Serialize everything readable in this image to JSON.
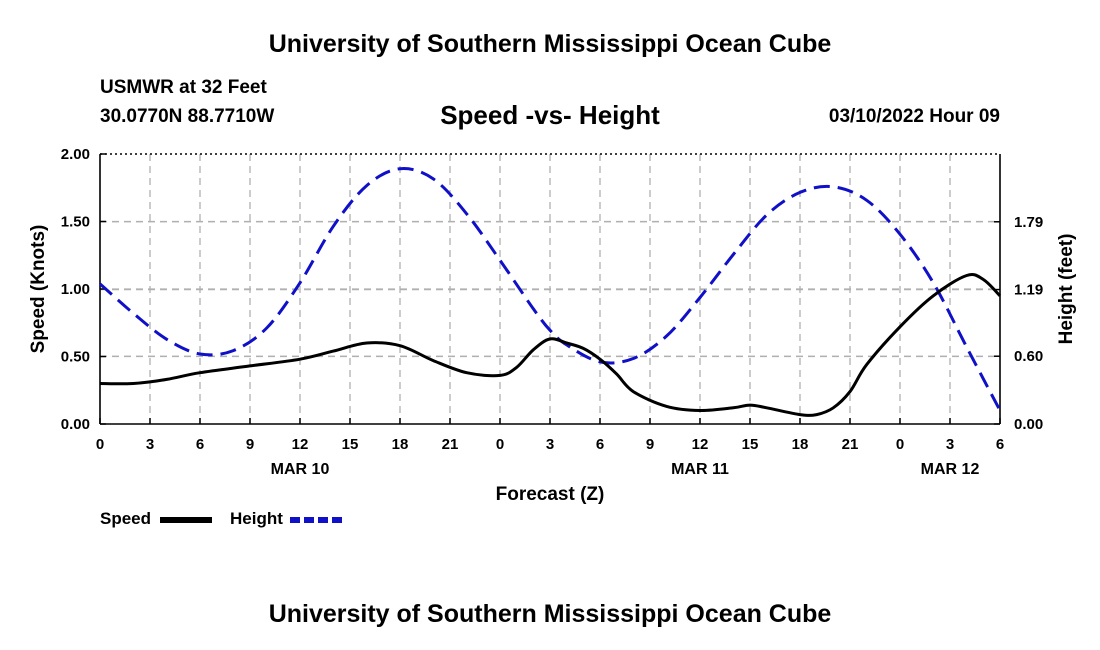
{
  "header": {
    "title": "University of Southern Mississippi Ocean Cube",
    "station": "USMWR at 32 Feet",
    "coords": "30.0770N  88.7710W",
    "datetime": "03/10/2022 Hour 09",
    "footer_title": "University of Southern Mississippi Ocean Cube"
  },
  "colors": {
    "speed": "#000000",
    "height": "#1010c8",
    "grid": "#b0b0b0"
  },
  "chart_data": {
    "type": "line",
    "title": "Speed -vs- Height",
    "xlabel": "Forecast (Z)",
    "ylabel": "Speed (Knots)",
    "y2label": "Height (feet)",
    "x_range": [
      0,
      54
    ],
    "xticks": [
      0,
      3,
      6,
      9,
      12,
      15,
      18,
      21,
      24,
      27,
      30,
      33,
      36,
      39,
      42,
      45,
      48,
      51,
      54
    ],
    "xtick_labels": [
      "0",
      "3",
      "6",
      "9",
      "12",
      "15",
      "18",
      "21",
      "0",
      "3",
      "6",
      "9",
      "12",
      "15",
      "18",
      "21",
      "0",
      "3",
      "6"
    ],
    "date_labels": [
      {
        "hour": 12,
        "label": "MAR 10"
      },
      {
        "hour": 36,
        "label": "MAR 11"
      },
      {
        "hour": 51,
        "label": "MAR 12"
      }
    ],
    "ylim": [
      0,
      2.0
    ],
    "yticks": [
      0.0,
      0.5,
      1.0,
      1.5,
      2.0
    ],
    "ytick_labels": [
      "0.00",
      "0.50",
      "1.00",
      "1.50",
      "2.00"
    ],
    "y2ticks": [
      0.0,
      0.6,
      1.19,
      1.79
    ],
    "y2tick_labels": [
      "0.00",
      "0.60",
      "1.19",
      "1.79"
    ],
    "y2lim": [
      0,
      2.39
    ],
    "legend": [
      "Speed",
      "Height"
    ],
    "series": [
      {
        "name": "Speed",
        "axis": "left",
        "x": [
          0,
          2,
          4,
          6,
          9,
          12,
          14,
          16,
          18,
          20,
          22,
          24,
          25,
          26,
          27,
          28,
          29,
          30,
          31,
          32,
          34,
          36,
          38,
          39,
          40,
          42,
          43,
          44,
          45,
          46,
          48,
          50,
          52,
          53,
          54
        ],
        "values": [
          0.3,
          0.3,
          0.33,
          0.38,
          0.43,
          0.48,
          0.54,
          0.6,
          0.58,
          0.47,
          0.38,
          0.36,
          0.42,
          0.55,
          0.63,
          0.6,
          0.56,
          0.48,
          0.37,
          0.24,
          0.13,
          0.1,
          0.12,
          0.14,
          0.12,
          0.07,
          0.07,
          0.12,
          0.24,
          0.44,
          0.72,
          0.95,
          1.1,
          1.07,
          0.95
        ]
      },
      {
        "name": "Height",
        "axis": "right",
        "x": [
          0,
          2,
          4,
          6,
          8,
          10,
          12,
          14,
          16,
          18,
          20,
          22,
          24,
          26,
          27,
          28,
          30,
          32,
          34,
          36,
          38,
          40,
          42,
          44,
          46,
          48,
          50,
          52,
          54
        ],
        "values": [
          1.24,
          0.98,
          0.75,
          0.62,
          0.65,
          0.85,
          1.25,
          1.75,
          2.11,
          2.26,
          2.17,
          1.86,
          1.45,
          1.02,
          0.83,
          0.7,
          0.55,
          0.58,
          0.78,
          1.12,
          1.5,
          1.85,
          2.05,
          2.1,
          1.98,
          1.68,
          1.25,
          0.68,
          0.12
        ]
      }
    ]
  }
}
